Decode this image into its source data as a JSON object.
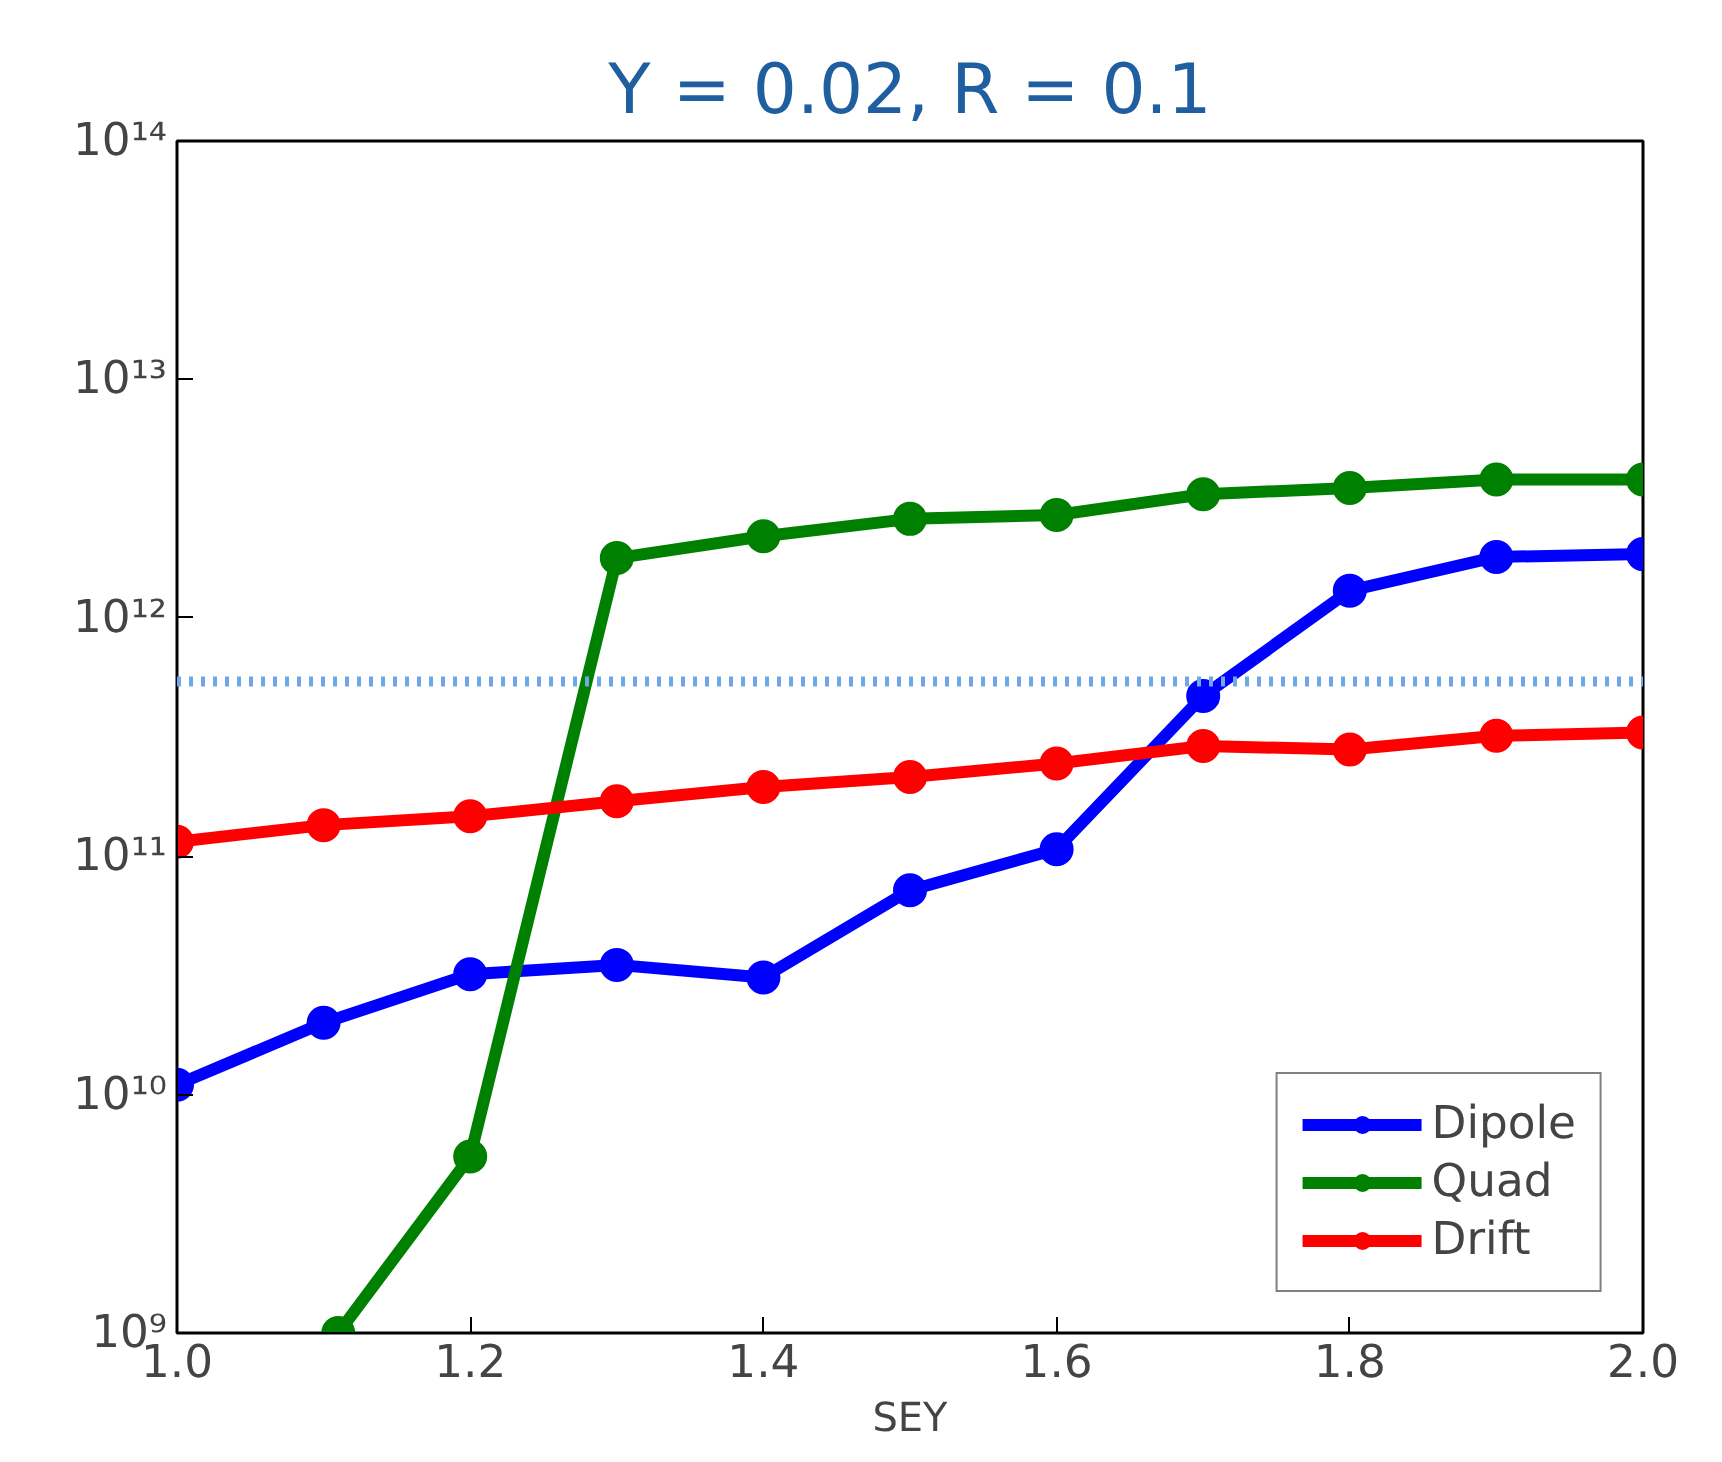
{
  "chart_data": {
    "type": "line",
    "title": "Y = 0.02, R = 0.1",
    "xlabel": "SEY",
    "x": [
      1.0,
      1.1,
      1.2,
      1.3,
      1.4,
      1.5,
      1.6,
      1.7,
      1.8,
      1.9,
      2.0
    ],
    "series": [
      {
        "name": "Dipole",
        "color": "#0000ff",
        "values": [
          11000000000.0,
          20000000000.0,
          32000000000.0,
          35000000000.0,
          31000000000.0,
          72000000000.0,
          107000000000.0,
          470000000000.0,
          1300000000000.0,
          1800000000000.0,
          1850000000000.0
        ]
      },
      {
        "name": "Quad",
        "color": "#008000",
        "x": [
          1.11,
          1.2,
          1.3,
          1.4,
          1.5,
          1.6,
          1.7,
          1.8,
          1.9,
          2.0
        ],
        "values": [
          1000000000.0,
          5500000000.0,
          1780000000000.0,
          2200000000000.0,
          2600000000000.0,
          2700000000000.0,
          3300000000000.0,
          3500000000000.0,
          3800000000000.0,
          3800000000000.0
        ]
      },
      {
        "name": "Drift",
        "color": "#ff0000",
        "values": [
          115000000000.0,
          135000000000.0,
          147000000000.0,
          170000000000.0,
          195000000000.0,
          215000000000.0,
          245000000000.0,
          290000000000.0,
          280000000000.0,
          320000000000.0,
          330000000000.0
        ]
      }
    ],
    "log": "y",
    "xlim": [
      1.0,
      2.0
    ],
    "ylim": [
      1000000000.0,
      100000000000000.0
    ],
    "xticks": [
      {
        "value": 1.0,
        "label": "1.0"
      },
      {
        "value": 1.2,
        "label": "1.2"
      },
      {
        "value": 1.4,
        "label": "1.4"
      },
      {
        "value": 1.6,
        "label": "1.6"
      },
      {
        "value": 1.8,
        "label": "1.8"
      },
      {
        "value": 2.0,
        "label": "2.0"
      }
    ],
    "yticks": [
      {
        "value": 1000000000.0,
        "label": "10⁹"
      },
      {
        "value": 10000000000.0,
        "label": "10¹⁰"
      },
      {
        "value": 100000000000.0,
        "label": "10¹¹"
      },
      {
        "value": 1000000000000.0,
        "label": "10¹²"
      },
      {
        "value": 10000000000000.0,
        "label": "10¹³"
      },
      {
        "value": 100000000000000.0,
        "label": "10¹⁴"
      }
    ],
    "ref_lines": [
      {
        "axis": "y",
        "value": 540000000000.0,
        "color": "#6fa8e8",
        "line_style": "dotted"
      }
    ],
    "grid": false,
    "legend": "bottom right",
    "marker": "circle",
    "line_style": "solid"
  }
}
